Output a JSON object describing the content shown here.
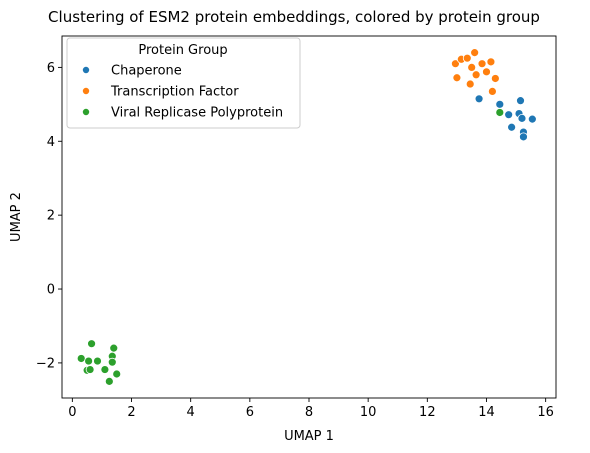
{
  "chart_data": {
    "type": "scatter",
    "title": "Clustering of ESM2 protein embeddings, colored by protein group",
    "xlabel": "UMAP 1",
    "ylabel": "UMAP 2",
    "xlim": [
      -0.35,
      16.35
    ],
    "ylim": [
      -2.95,
      6.85
    ],
    "xticks": [
      0,
      2,
      4,
      6,
      8,
      10,
      12,
      14,
      16
    ],
    "yticks": [
      -2,
      0,
      2,
      4,
      6
    ],
    "grid": false,
    "legend": {
      "title": "Protein Group",
      "position": "top-left"
    },
    "series": [
      {
        "name": "Chaperone",
        "color": "#1f77b4",
        "points": [
          [
            13.75,
            5.15
          ],
          [
            14.45,
            5.0
          ],
          [
            14.75,
            4.72
          ],
          [
            15.1,
            4.75
          ],
          [
            15.15,
            5.1
          ],
          [
            15.2,
            4.62
          ],
          [
            15.55,
            4.6
          ],
          [
            14.85,
            4.38
          ],
          [
            15.25,
            4.25
          ],
          [
            15.25,
            4.12
          ]
        ]
      },
      {
        "name": "Transcription Factor",
        "color": "#ff7f0e",
        "points": [
          [
            12.95,
            6.1
          ],
          [
            13.15,
            6.22
          ],
          [
            13.35,
            6.25
          ],
          [
            13.6,
            6.4
          ],
          [
            13.5,
            6.0
          ],
          [
            13.85,
            6.1
          ],
          [
            14.0,
            5.88
          ],
          [
            14.15,
            6.15
          ],
          [
            13.65,
            5.8
          ],
          [
            13.0,
            5.72
          ],
          [
            13.45,
            5.55
          ],
          [
            14.3,
            5.7
          ],
          [
            14.2,
            5.35
          ]
        ]
      },
      {
        "name": "Viral Replicase Polyprotein",
        "color": "#2ca02c",
        "points": [
          [
            0.65,
            -1.48
          ],
          [
            1.4,
            -1.6
          ],
          [
            1.35,
            -1.82
          ],
          [
            0.3,
            -1.88
          ],
          [
            0.55,
            -1.95
          ],
          [
            0.85,
            -1.95
          ],
          [
            1.35,
            -1.98
          ],
          [
            0.5,
            -2.2
          ],
          [
            0.6,
            -2.18
          ],
          [
            1.1,
            -2.18
          ],
          [
            1.5,
            -2.3
          ],
          [
            1.25,
            -2.5
          ],
          [
            14.45,
            4.78
          ]
        ]
      }
    ]
  }
}
